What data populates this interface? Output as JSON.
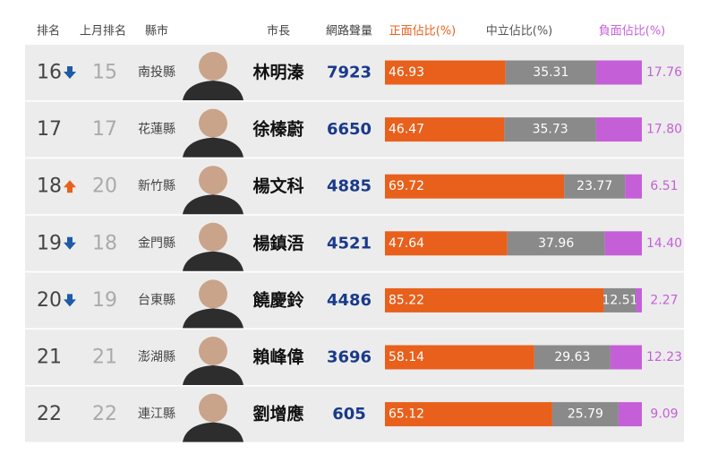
{
  "header": {
    "rank": "排名",
    "last_month": "上月排名",
    "county": "縣市",
    "mayor": "市長",
    "volume": "網路聲量",
    "positive": "正面佔比(%)",
    "neutral": "中立佔比(%)",
    "negative": "負面佔比(%)"
  },
  "colors": {
    "positive": "#e8601c",
    "neutral": "#8a8a8a",
    "negative": "#c55fd8",
    "down": "#1f5aa6",
    "up": "#e8601c"
  },
  "rows": [
    {
      "rank": 16,
      "trend": "down",
      "last_month": 15,
      "county": "南投縣",
      "name": "林明溱",
      "volume": 7923,
      "shares": {
        "values": [
          46.93,
          35.31,
          17.76
        ],
        "value_labels": [
          "46.93",
          "35.31",
          "17.76"
        ]
      }
    },
    {
      "rank": 17,
      "trend": null,
      "last_month": 17,
      "county": "花蓮縣",
      "name": "徐榛蔚",
      "volume": 6650,
      "shares": {
        "values": [
          46.47,
          35.73,
          17.8
        ],
        "value_labels": [
          "46.47",
          "35.73",
          "17.80"
        ]
      }
    },
    {
      "rank": 18,
      "trend": "up",
      "last_month": 20,
      "county": "新竹縣",
      "name": "楊文科",
      "volume": 4885,
      "shares": {
        "values": [
          69.72,
          23.77,
          6.51
        ],
        "value_labels": [
          "69.72",
          "23.77",
          "6.51"
        ]
      }
    },
    {
      "rank": 19,
      "trend": "down",
      "last_month": 18,
      "county": "金門縣",
      "name": "楊鎮浯",
      "volume": 4521,
      "shares": {
        "values": [
          47.64,
          37.96,
          14.4
        ],
        "value_labels": [
          "47.64",
          "37.96",
          "14.40"
        ]
      }
    },
    {
      "rank": 20,
      "trend": "down",
      "last_month": 19,
      "county": "台東縣",
      "name": "饒慶鈴",
      "volume": 4486,
      "shares": {
        "values": [
          85.22,
          12.51,
          2.27
        ],
        "value_labels": [
          "85.22",
          "12.51",
          "2.27"
        ]
      }
    },
    {
      "rank": 21,
      "trend": null,
      "last_month": 21,
      "county": "澎湖縣",
      "name": "賴峰偉",
      "volume": 3696,
      "shares": {
        "values": [
          58.14,
          29.63,
          12.23
        ],
        "value_labels": [
          "58.14",
          "29.63",
          "12.23"
        ]
      }
    },
    {
      "rank": 22,
      "trend": null,
      "last_month": 22,
      "county": "連江縣",
      "name": "劉增應",
      "volume": 605,
      "shares": {
        "values": [
          65.12,
          25.79,
          9.09
        ],
        "value_labels": [
          "65.12",
          "25.79",
          "9.09"
        ]
      }
    }
  ]
}
